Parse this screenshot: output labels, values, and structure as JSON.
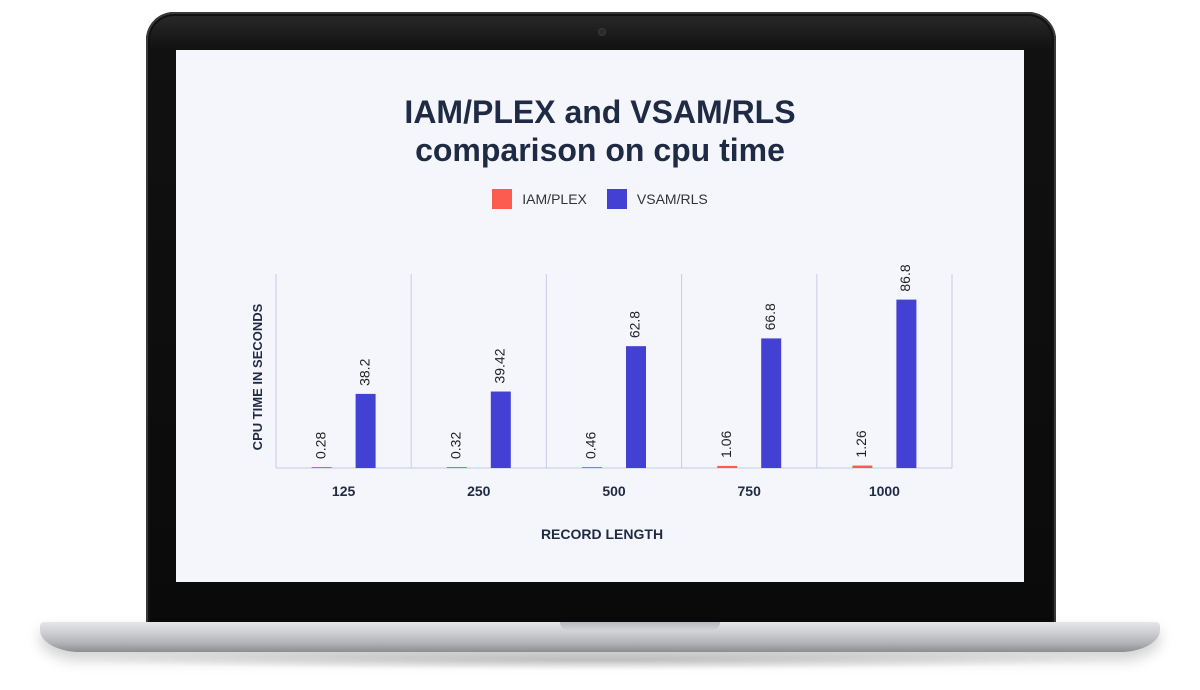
{
  "colors": {
    "iam_plex": "#fc5c50",
    "vsam_rls": "#4340d4",
    "text": "#1f2a44",
    "grid": "#c9cbe6"
  },
  "chart_data": {
    "type": "bar",
    "title_line1": "IAM/PLEX and VSAM/RLS",
    "title_line2": "comparison on cpu time",
    "xlabel": "RECORD LENGTH",
    "ylabel": "CPU TIME IN SECONDS",
    "categories": [
      "125",
      "250",
      "500",
      "750",
      "1000"
    ],
    "series": [
      {
        "name": "IAM/PLEX",
        "values": [
          0.28,
          0.32,
          0.46,
          1.06,
          1.26
        ],
        "labels": [
          "0.28",
          "0.32",
          "0.46",
          "1.06",
          "1.26"
        ]
      },
      {
        "name": "VSAM/RLS",
        "values": [
          38.2,
          39.42,
          62.8,
          66.8,
          86.8
        ],
        "labels": [
          "38.2",
          "39.42",
          "62.8",
          "66.8",
          "86.8"
        ]
      }
    ],
    "ylim": [
      0,
      100
    ],
    "legend_position": "top-center",
    "grid": "vertical category separators"
  }
}
